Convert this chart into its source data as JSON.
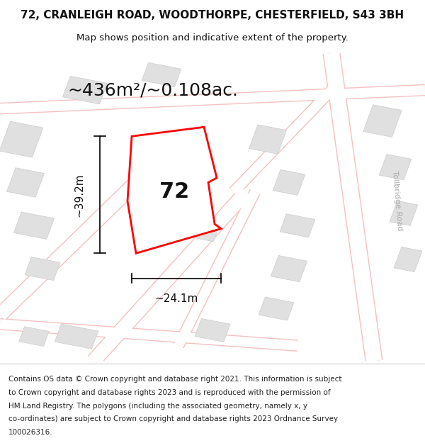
{
  "title_line1": "72, CRANLEIGH ROAD, WOODTHORPE, CHESTERFIELD, S43 3BH",
  "title_line2": "Map shows position and indicative extent of the property.",
  "area_text": "~436m²/~0.108ac.",
  "label_72": "72",
  "dim_width": "~24.1m",
  "dim_height": "~39.2m",
  "road_label": "Tollbridge Road",
  "footer_lines": [
    "Contains OS data © Crown copyright and database right 2021. This information is subject",
    "to Crown copyright and database rights 2023 and is reproduced with the permission of",
    "HM Land Registry. The polygons (including the associated geometry, namely x, y",
    "co-ordinates) are subject to Crown copyright and database rights 2023 Ordnance Survey",
    "100026316."
  ],
  "map_bg": "#f2f2f2",
  "road_color": "#f5c0c0",
  "block_fill": "#e0e0e0",
  "block_edge": "#cccccc",
  "plot_stroke": "#ff0000",
  "plot_fill": "#ffffff",
  "text_color": "#111111",
  "title_fontsize": 11,
  "subtitle_fontsize": 9.5,
  "area_fontsize": 18,
  "label_fontsize": 22,
  "dim_fontsize": 11,
  "footer_fontsize": 7.5,
  "road_label_color": "#aaaaaa",
  "road_label_fontsize": 8
}
